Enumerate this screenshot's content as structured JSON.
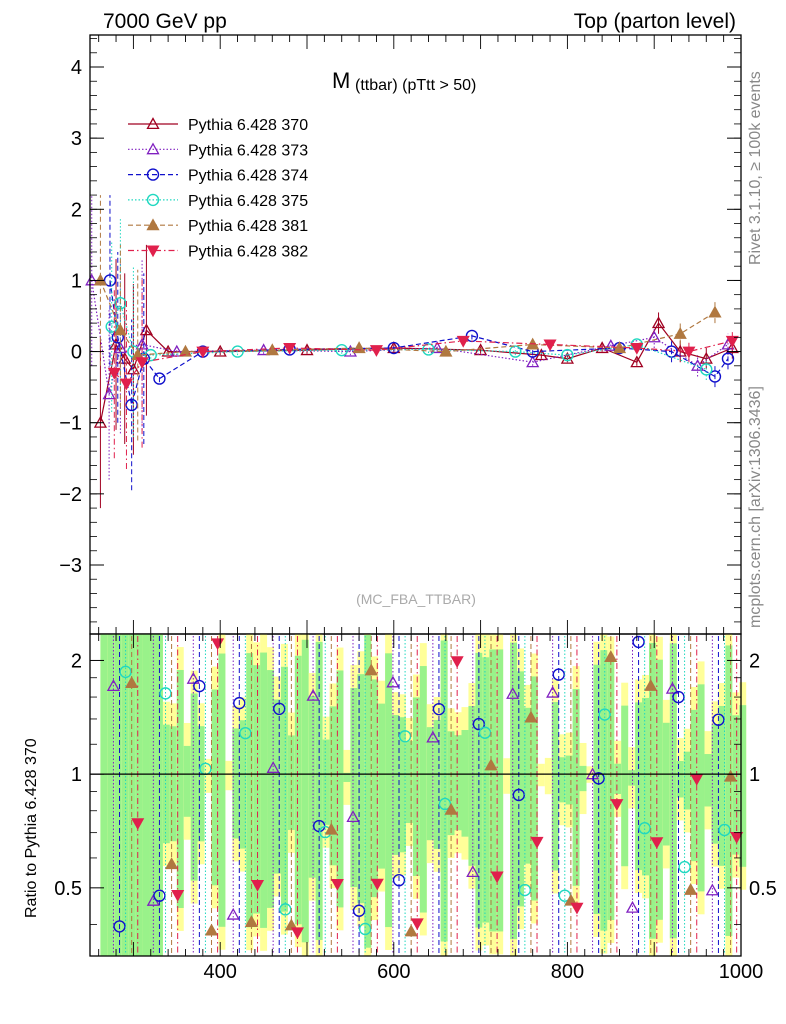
{
  "header": {
    "left": "7000 GeV pp",
    "right": "Top (parton level)"
  },
  "side_labels": {
    "rivet": "Rivet 3.1.10, ≥ 100k events",
    "mcplots": "mcplots.cern.ch [arXiv:1306.3436]"
  },
  "chart_data": [
    {
      "type": "line",
      "title_main": "M",
      "title_sub": "(ttbar) (pTtt > 50)",
      "watermark": "(MC_FBA_TTBAR)",
      "xlabel": "",
      "ylabel": "",
      "xlim": [
        250,
        1000
      ],
      "ylim": [
        -3.97,
        4.45
      ],
      "y_ticks": [
        -3,
        -2,
        -1,
        0,
        1,
        2,
        3,
        4
      ],
      "y_tick_labels": [
        "−3",
        "−2",
        "−1",
        "0",
        "1",
        "2",
        "3",
        "4"
      ],
      "legend_position": "top-left",
      "series": [
        {
          "name": "Pythia 6.428 370",
          "color": "#a00020",
          "marker": "triangle-up-open",
          "dash": "solid",
          "x": [
            262,
            280,
            290,
            300,
            315,
            340,
            400,
            500,
            600,
            700,
            770,
            800,
            840,
            880,
            905,
            930,
            960,
            990
          ],
          "y": [
            -1.0,
            0.1,
            -0.1,
            -0.25,
            0.3,
            0.0,
            0.0,
            0.02,
            0.05,
            0.02,
            -0.05,
            -0.1,
            0.05,
            -0.15,
            0.4,
            0.0,
            -0.1,
            0.05
          ]
        },
        {
          "name": "Pythia 6.428 373",
          "color": "#8020c0",
          "marker": "triangle-up-open",
          "dash": "dotted",
          "x": [
            252,
            272,
            285,
            310,
            350,
            450,
            550,
            650,
            760,
            850,
            900,
            950,
            985
          ],
          "y": [
            1.0,
            -0.6,
            0.05,
            0.1,
            0.0,
            0.02,
            0.0,
            0.05,
            -0.15,
            0.08,
            0.2,
            -0.2,
            0.1
          ]
        },
        {
          "name": "Pythia 6.428 374",
          "color": "#1010cc",
          "marker": "circle-open",
          "dash": "dashed",
          "x": [
            273,
            282,
            298,
            312,
            330,
            380,
            480,
            600,
            690,
            760,
            860,
            920,
            970,
            985
          ],
          "y": [
            1.0,
            0.2,
            -0.75,
            -0.1,
            -0.38,
            0.0,
            0.03,
            0.05,
            0.22,
            0.0,
            0.05,
            0.0,
            -0.35,
            -0.1
          ]
        },
        {
          "name": "Pythia 6.428 375",
          "color": "#20d8c0",
          "marker": "circle-open",
          "dash": "dotted",
          "x": [
            275,
            285,
            300,
            320,
            420,
            540,
            640,
            740,
            800,
            880,
            960
          ],
          "y": [
            0.35,
            0.68,
            0.0,
            -0.05,
            0.0,
            0.02,
            0.03,
            0.0,
            -0.05,
            0.1,
            -0.25
          ]
        },
        {
          "name": "Pythia 6.428 381",
          "color": "#b07840",
          "marker": "triangle-up-filled",
          "dash": "dashed",
          "x": [
            262,
            285,
            305,
            360,
            460,
            560,
            660,
            760,
            860,
            930,
            970
          ],
          "y": [
            1.0,
            0.3,
            -0.05,
            0.0,
            0.02,
            0.05,
            0.0,
            0.1,
            0.05,
            0.25,
            0.55
          ]
        },
        {
          "name": "Pythia 6.428 382",
          "color": "#e0204c",
          "marker": "triangle-down-filled",
          "dash": "dashdot",
          "x": [
            278,
            292,
            310,
            380,
            480,
            580,
            680,
            780,
            880,
            940,
            990
          ],
          "y": [
            -0.3,
            -0.45,
            -0.15,
            0.0,
            0.05,
            0.02,
            0.15,
            0.1,
            0.05,
            0.0,
            0.15
          ]
        }
      ]
    },
    {
      "type": "line",
      "ylabel": "Ratio to Pythia 6.428 370",
      "xlim": [
        250,
        1000
      ],
      "ylim": [
        0.33,
        2.35
      ],
      "log_y": true,
      "x_ticks": [
        400,
        600,
        800,
        1000
      ],
      "y_ticks": [
        0.5,
        1,
        2
      ],
      "y_tick_labels": [
        "0.5",
        "1",
        "2"
      ],
      "reference_line": 1
    }
  ]
}
